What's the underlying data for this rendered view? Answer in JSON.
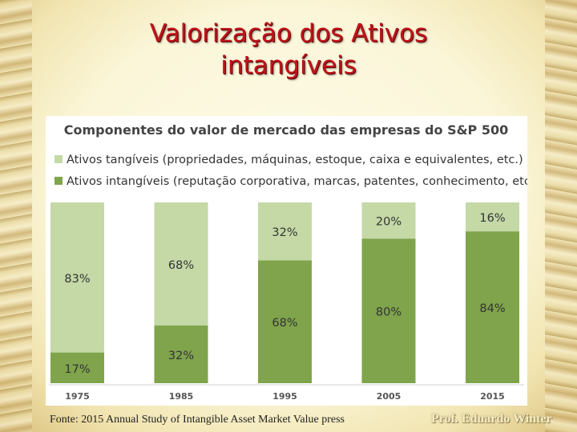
{
  "slide": {
    "title_line1": "Valorização dos Ativos",
    "title_line2": "intangíveis",
    "footnote": "Fonte: 2015 Annual Study of Intangible Asset Market Value press",
    "signature": "Prof. Eduardo Winter"
  },
  "colors": {
    "title": "#c0141b",
    "tangible": "#c4d9a6",
    "intangible": "#7fa44b"
  },
  "chart_data": {
    "type": "bar",
    "stacked": true,
    "title": "Componentes do valor de mercado das empresas do S&P 500",
    "categories": [
      "1975",
      "1985",
      "1995",
      "2005",
      "2015"
    ],
    "series": [
      {
        "name": "Ativos intangíveis (reputação corporativa, marcas, patentes, conhecimento, etc.)",
        "values": [
          17,
          32,
          68,
          80,
          84
        ],
        "color": "#7fa44b"
      },
      {
        "name": "Ativos tangíveis (propriedades, máquinas, estoque, caixa e equivalentes, etc.)",
        "values": [
          83,
          68,
          32,
          20,
          16
        ],
        "color": "#c4d9a6"
      }
    ],
    "legend_order": [
      1,
      0
    ],
    "value_suffix": "%",
    "ylim": [
      0,
      100
    ],
    "xlabel": "",
    "ylabel": "",
    "grid": false,
    "legend_position": "top-left"
  }
}
